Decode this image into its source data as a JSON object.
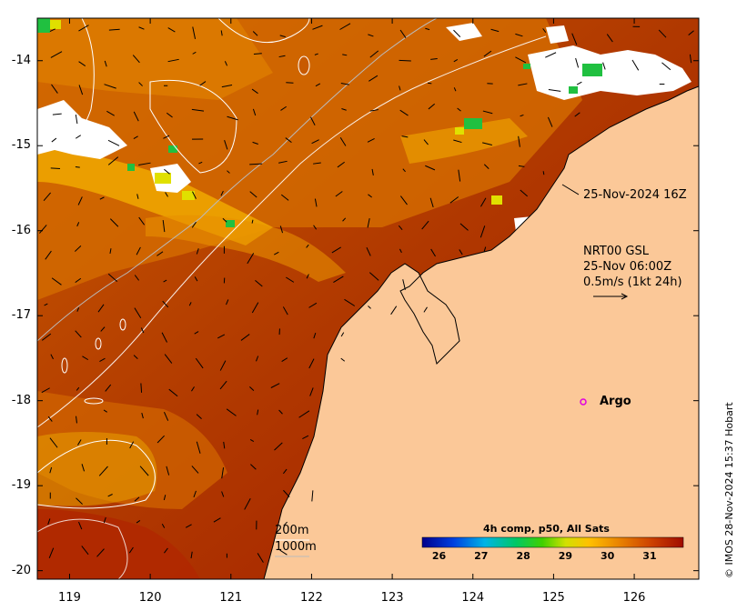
{
  "map": {
    "lon_range": [
      118.6,
      126.8
    ],
    "lat_range": [
      -20.1,
      -13.5
    ],
    "x_ticks": [
      "119",
      "120",
      "121",
      "122",
      "123",
      "124",
      "125",
      "126"
    ],
    "y_ticks": [
      "-14",
      "-15",
      "-16",
      "-17",
      "-18",
      "-19",
      "-20"
    ],
    "land_color": "#fbc898",
    "cloud_color": "#ffffff"
  },
  "annotations": {
    "pass_time": "25-Nov-2024 16Z",
    "current_model": "NRT00 GSL",
    "current_time": "25-Nov 06:00Z",
    "current_scale": "0.5m/s (1kt 24h)",
    "argo_label": "Argo",
    "isobath_200": "200m",
    "isobath_1000": "1000m"
  },
  "colorbar": {
    "title": "4h comp, p50, All Sats",
    "ticks": [
      "26",
      "27",
      "28",
      "29",
      "30",
      "31"
    ],
    "range": [
      25.6,
      31.8
    ],
    "colors": [
      "#00008c",
      "#0040e0",
      "#00b4e6",
      "#00c864",
      "#40d000",
      "#d2e000",
      "#ffc000",
      "#e88000",
      "#cc4000",
      "#a00c00"
    ]
  },
  "credit": "© IMOS 28-Nov-2024 15:37 Hobart"
}
